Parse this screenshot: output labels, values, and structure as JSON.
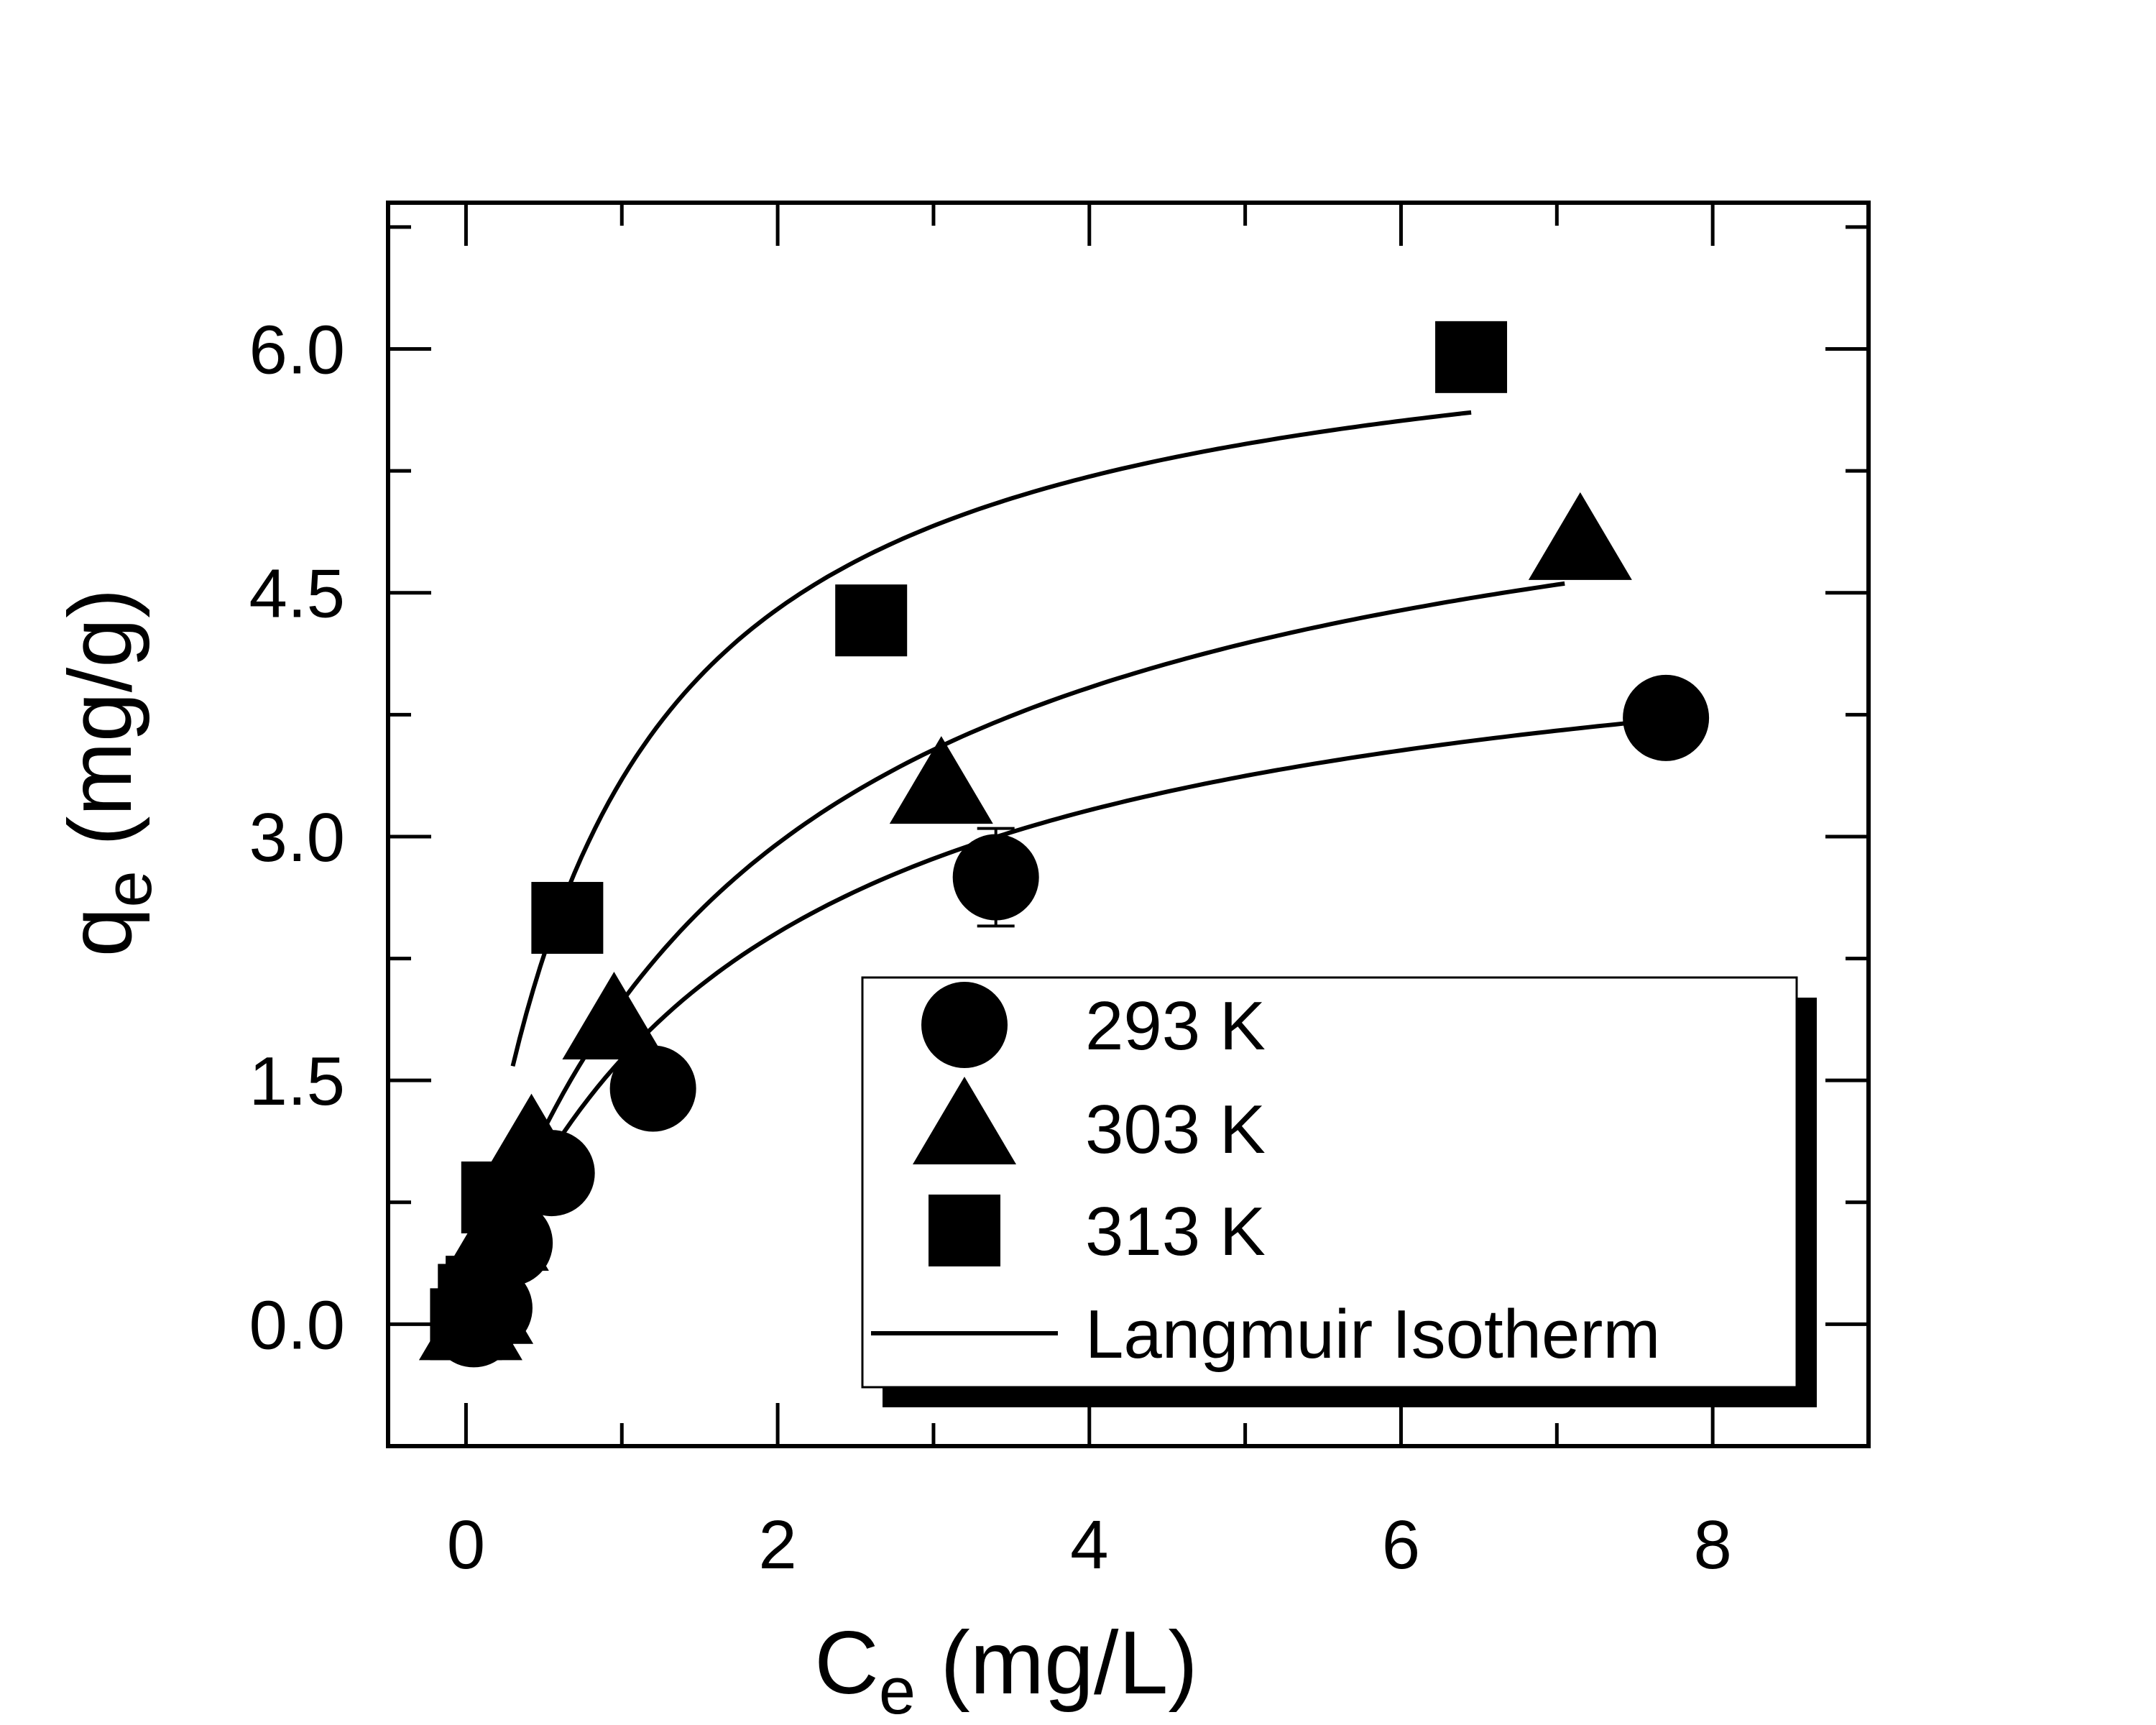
{
  "chart_data": {
    "type": "scatter",
    "xlabel": {
      "main": "C",
      "sub": "e",
      "unit": " (mg/L)"
    },
    "ylabel": {
      "main": "q",
      "sub": "e",
      "unit": " (mg/g)"
    },
    "xlim": [
      -0.5,
      9.0
    ],
    "ylim": [
      -0.75,
      6.9
    ],
    "x_ticks": [
      0,
      2,
      4,
      6,
      8
    ],
    "x_tick_labels": [
      "0",
      "2",
      "4",
      "6",
      "8"
    ],
    "x_minor_ticks": [
      1,
      3,
      5,
      7
    ],
    "y_ticks": [
      0.0,
      1.5,
      3.0,
      4.5,
      6.0
    ],
    "y_tick_labels": [
      "0.0",
      "1.5",
      "3.0",
      "4.5",
      "6.0"
    ],
    "y_minor_ticks": [
      0.75,
      2.25,
      3.75,
      5.25,
      6.75
    ],
    "grid": false,
    "legend_position": "bottom-right",
    "series": [
      {
        "name": "293 K",
        "marker": "circle",
        "color": "#000000",
        "x": [
          0.05,
          0.15,
          0.28,
          0.55,
          1.2,
          3.4,
          7.7
        ],
        "y": [
          0.0,
          0.1,
          0.5,
          0.93,
          1.45,
          2.75,
          3.73
        ],
        "error_bar_index": 5,
        "error_bar": 0.3,
        "fit": {
          "qmax": 4.6,
          "KL": 0.55,
          "x_start": 0.02,
          "x_end": 7.7
        }
      },
      {
        "name": "303 K",
        "marker": "triangle",
        "color": "#000000",
        "x": [
          0.03,
          0.1,
          0.2,
          0.42,
          0.95,
          3.05,
          7.15
        ],
        "y": [
          0.0,
          0.1,
          0.55,
          1.1,
          1.85,
          3.3,
          4.8
        ],
        "fit": {
          "qmax": 5.8,
          "KL": 0.52,
          "x_start": 0.02,
          "x_end": 7.05
        }
      },
      {
        "name": "313 K",
        "marker": "square",
        "color": "#000000",
        "x": [
          0.0,
          0.05,
          0.1,
          0.2,
          0.65,
          2.6,
          6.45
        ],
        "y": [
          0.0,
          0.15,
          0.2,
          0.78,
          2.5,
          4.33,
          5.95
        ],
        "fit": {
          "qmax": 6.4,
          "KL": 1.1,
          "x_start": 0.3,
          "x_end": 6.45
        }
      }
    ],
    "legend": [
      {
        "label": "293 K",
        "marker": "circle"
      },
      {
        "label": "303 K",
        "marker": "triangle"
      },
      {
        "label": "313 K",
        "marker": "square"
      },
      {
        "label": "Langmuir Isotherm",
        "marker": "line"
      }
    ]
  }
}
